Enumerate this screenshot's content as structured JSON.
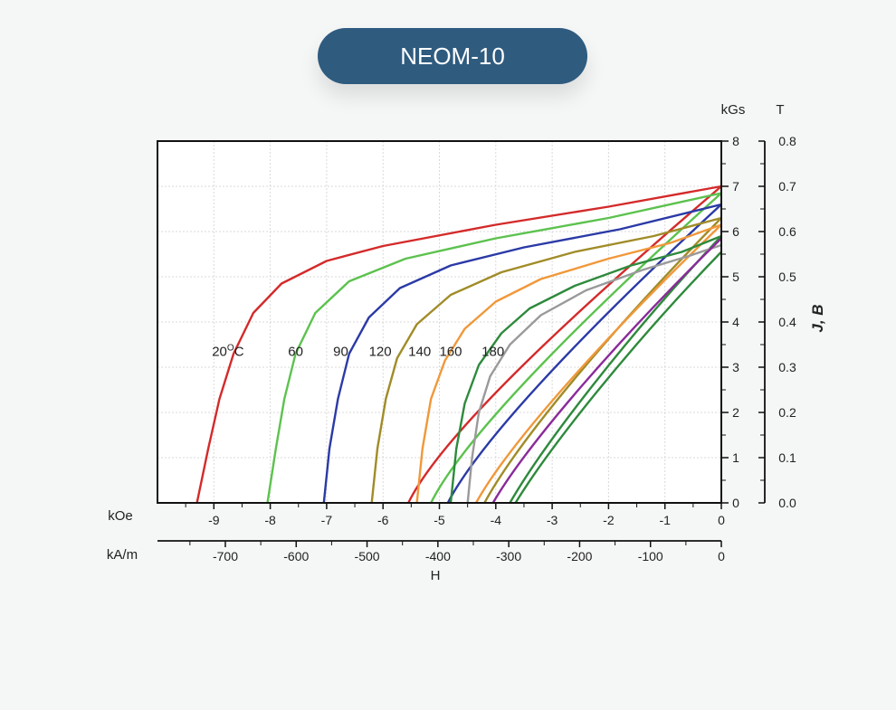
{
  "title": "NEOM-10",
  "chart_data": {
    "type": "line",
    "x_axis": {
      "unit_primary": "kOe",
      "ticks_primary": [
        -9,
        -8,
        -7,
        -6,
        -5,
        -4,
        -3,
        -2,
        -1,
        0
      ],
      "unit_secondary": "kA/m",
      "ticks_secondary": [
        -700,
        -600,
        -500,
        -400,
        -300,
        -200,
        -100,
        0
      ],
      "label": "H",
      "xlim_kOe": [
        -10,
        0
      ]
    },
    "y_axis": {
      "unit_primary": "kGs",
      "ticks_primary": [
        0,
        1,
        2,
        3,
        4,
        5,
        6,
        7,
        8
      ],
      "unit_secondary": "T",
      "ticks_secondary": [
        "0.0",
        "0.1",
        "0.2",
        "0.3",
        "0.4",
        "0.5",
        "0.6",
        "0.7",
        "0.8"
      ],
      "label": "J, B",
      "ylim_kGs": [
        0,
        8
      ]
    },
    "grid": true,
    "temperature_labels": [
      {
        "text": "20",
        "sup": "O",
        "tail": "C",
        "at": [
          -8.75,
          3.35
        ]
      },
      {
        "text": "60",
        "at": [
          -7.55,
          3.35
        ]
      },
      {
        "text": "90",
        "at": [
          -6.75,
          3.35
        ]
      },
      {
        "text": "120",
        "at": [
          -6.05,
          3.35
        ]
      },
      {
        "text": "140",
        "at": [
          -5.35,
          3.35
        ]
      },
      {
        "text": "160",
        "at": [
          -4.8,
          3.35
        ]
      },
      {
        "text": "180",
        "at": [
          -4.05,
          3.35
        ]
      }
    ],
    "series": [
      {
        "color": "#d42a2a",
        "Hcj": -9.3,
        "Br": 7.0,
        "knee": [
          [
            -9.3,
            0
          ],
          [
            -9.1,
            1.2
          ],
          [
            -8.9,
            2.3
          ],
          [
            -8.65,
            3.3
          ],
          [
            -8.3,
            4.2
          ],
          [
            -7.8,
            4.85
          ],
          [
            -7.0,
            5.35
          ],
          [
            -6.0,
            5.68
          ],
          [
            -4.0,
            6.15
          ],
          [
            -2.0,
            6.55
          ],
          [
            0,
            7.0
          ]
        ],
        "bline_start": -5.55
      },
      {
        "color": "#5cc24e",
        "Hcj": -8.05,
        "Br": 6.85,
        "knee": [
          [
            -8.05,
            0
          ],
          [
            -7.9,
            1.2
          ],
          [
            -7.75,
            2.3
          ],
          [
            -7.55,
            3.3
          ],
          [
            -7.2,
            4.2
          ],
          [
            -6.6,
            4.9
          ],
          [
            -5.6,
            5.4
          ],
          [
            -4.0,
            5.85
          ],
          [
            -2.0,
            6.3
          ],
          [
            0,
            6.85
          ]
        ],
        "bline_start": -5.15
      },
      {
        "color": "#2b3aa6",
        "Hcj": -7.05,
        "Br": 6.6,
        "knee": [
          [
            -7.05,
            0
          ],
          [
            -6.95,
            1.2
          ],
          [
            -6.8,
            2.3
          ],
          [
            -6.6,
            3.3
          ],
          [
            -6.25,
            4.1
          ],
          [
            -5.7,
            4.75
          ],
          [
            -4.8,
            5.25
          ],
          [
            -3.5,
            5.65
          ],
          [
            -1.8,
            6.05
          ],
          [
            0,
            6.6
          ]
        ],
        "bline_start": -4.85
      },
      {
        "color": "#a08c28",
        "Hcj": -6.2,
        "Br": 6.3,
        "knee": [
          [
            -6.2,
            0
          ],
          [
            -6.1,
            1.2
          ],
          [
            -5.95,
            2.3
          ],
          [
            -5.75,
            3.2
          ],
          [
            -5.4,
            3.95
          ],
          [
            -4.8,
            4.6
          ],
          [
            -3.9,
            5.1
          ],
          [
            -2.6,
            5.55
          ],
          [
            -1.2,
            5.9
          ],
          [
            0,
            6.3
          ]
        ],
        "bline_start": -4.2
      },
      {
        "color": "#f0983a",
        "Hcj": -5.4,
        "Br": 6.15,
        "knee": [
          [
            -5.4,
            0
          ],
          [
            -5.3,
            1.2
          ],
          [
            -5.15,
            2.3
          ],
          [
            -4.9,
            3.15
          ],
          [
            -4.55,
            3.85
          ],
          [
            -4.0,
            4.45
          ],
          [
            -3.2,
            4.95
          ],
          [
            -2.0,
            5.4
          ],
          [
            -0.9,
            5.75
          ],
          [
            0,
            6.15
          ]
        ],
        "bline_start": -4.35
      },
      {
        "color": "#2e8a3c",
        "Hcj": -4.8,
        "Br": 5.9,
        "knee": [
          [
            -4.8,
            0
          ],
          [
            -4.7,
            1.2
          ],
          [
            -4.55,
            2.2
          ],
          [
            -4.3,
            3.05
          ],
          [
            -3.9,
            3.75
          ],
          [
            -3.4,
            4.3
          ],
          [
            -2.6,
            4.8
          ],
          [
            -1.6,
            5.25
          ],
          [
            -0.7,
            5.55
          ],
          [
            0,
            5.9
          ]
        ],
        "bline_start": -3.75
      },
      {
        "color": "#9a9a9a",
        "Hcj": -4.5,
        "Br": 5.7,
        "knee": [
          [
            -4.5,
            0
          ],
          [
            -4.42,
            1.0
          ],
          [
            -4.3,
            2.0
          ],
          [
            -4.1,
            2.8
          ],
          [
            -3.75,
            3.5
          ],
          [
            -3.2,
            4.15
          ],
          [
            -2.4,
            4.7
          ],
          [
            -1.4,
            5.15
          ],
          [
            -0.6,
            5.45
          ],
          [
            0,
            5.7
          ]
        ],
        "bline_start": null
      },
      {
        "color": "#8a2a9a",
        "bline_start": -4.05,
        "Br": 5.85
      },
      {
        "color": "#2e8a3c",
        "bline_start": -3.65,
        "Br": 5.55
      }
    ]
  }
}
